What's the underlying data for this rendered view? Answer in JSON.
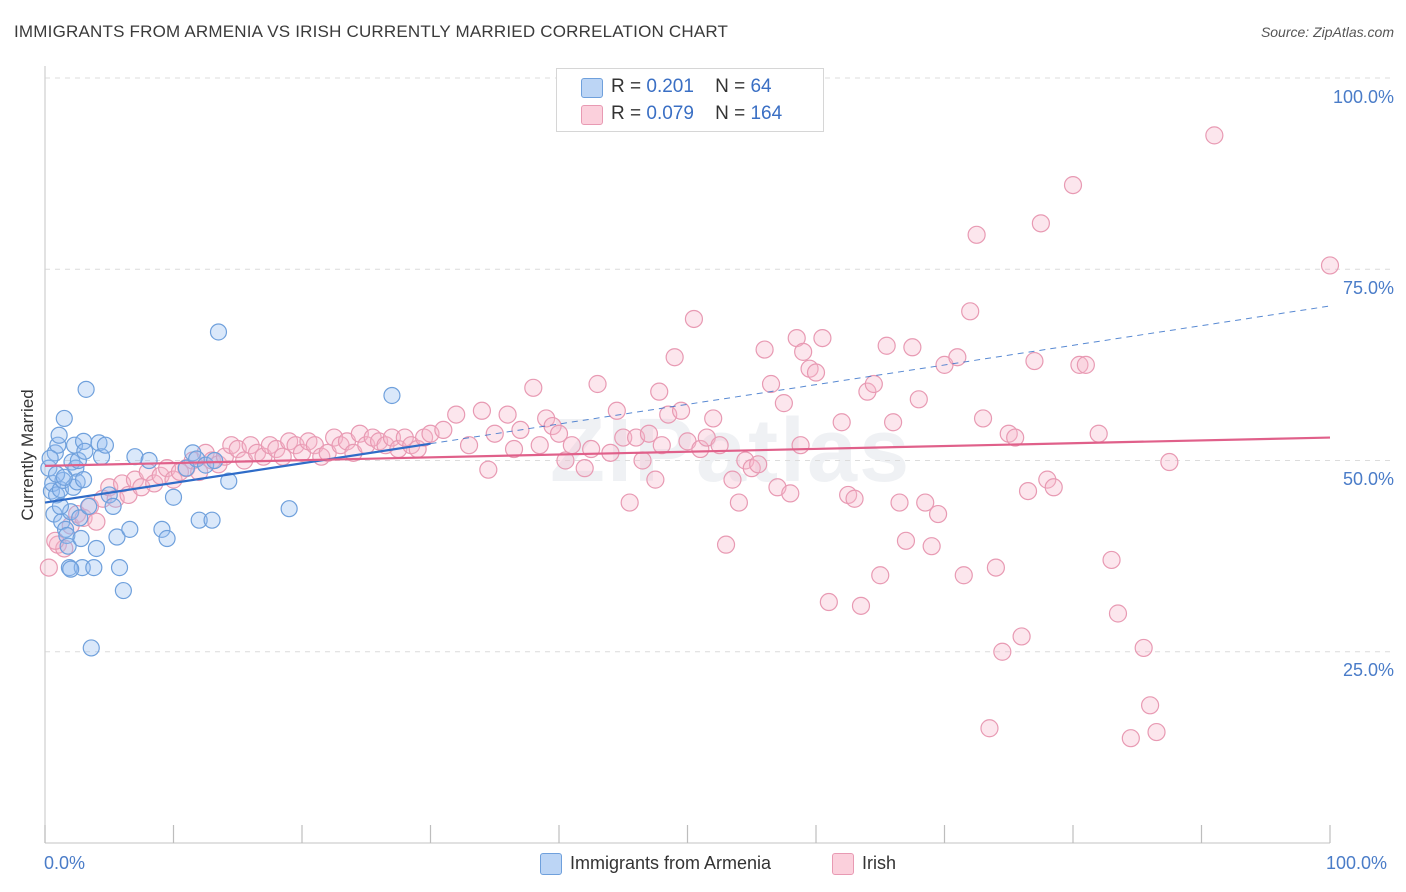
{
  "title": "IMMIGRANTS FROM ARMENIA VS IRISH CURRENTLY MARRIED CORRELATION CHART",
  "source": "Source: ZipAtlas.com",
  "watermark": "ZIPatlas",
  "legend": {
    "rows": [
      {
        "r_label": "R =",
        "r_value": "0.201",
        "n_label": "N =",
        "n_value": "64",
        "color": "#a9c8f0"
      },
      {
        "r_label": "R =",
        "r_value": "0.079",
        "n_label": "N =",
        "n_value": "164",
        "color": "#f6b8cb"
      }
    ]
  },
  "bottom_legend": [
    {
      "label": "Immigrants from Armenia",
      "color": "#a9c8f0"
    },
    {
      "label": "Irish",
      "color": "#f6b8cb"
    }
  ],
  "colors": {
    "blue_stroke": "#6fa0dc",
    "blue_fill": "rgba(150,190,240,0.35)",
    "blue_line": "#2f6cc8",
    "pink_stroke": "#e89ab3",
    "pink_fill": "rgba(246,184,203,0.35)",
    "pink_line": "#e0608a",
    "grid": "#dcdcdc",
    "tick_label": "#4a7cc8"
  },
  "chart_data": {
    "type": "scatter",
    "title": "IMMIGRANTS FROM ARMENIA VS IRISH CURRENTLY MARRIED CORRELATION CHART",
    "xlabel": "",
    "ylabel": "Currently Married",
    "xlim": [
      0,
      100
    ],
    "ylim": [
      0,
      100
    ],
    "x_tick_labels": [
      "0.0%",
      "100.0%"
    ],
    "y_tick_labels": [
      "100.0%",
      "75.0%",
      "50.0%",
      "25.0%"
    ],
    "y_ticks": [
      100,
      75,
      50,
      25
    ],
    "grid": true,
    "legend_position": "top-center",
    "series": [
      {
        "name": "Immigrants from Armenia",
        "r": 0.201,
        "n": 64,
        "trend": {
          "x0": 0,
          "y0": 44.5,
          "x1": 30,
          "y1": 52.2,
          "dash_x1": 100,
          "dash_y1": 70.2
        },
        "points": [
          [
            0.3,
            49
          ],
          [
            0.5,
            46
          ],
          [
            0.6,
            47
          ],
          [
            0.7,
            43
          ],
          [
            0.8,
            51
          ],
          [
            0.9,
            45.5
          ],
          [
            1.0,
            52
          ],
          [
            1.1,
            53.3
          ],
          [
            1.2,
            46.2
          ],
          [
            1.3,
            42
          ],
          [
            1.4,
            47.4
          ],
          [
            1.5,
            55.5
          ],
          [
            1.6,
            41
          ],
          [
            1.7,
            40.2
          ],
          [
            1.8,
            38.8
          ],
          [
            1.9,
            36
          ],
          [
            2.0,
            43.3
          ],
          [
            2.1,
            49.8
          ],
          [
            2.2,
            46.5
          ],
          [
            2.3,
            52
          ],
          [
            2.4,
            49
          ],
          [
            2.5,
            47.2
          ],
          [
            2.6,
            50
          ],
          [
            2.7,
            42.5
          ],
          [
            2.8,
            39.8
          ],
          [
            2.9,
            36
          ],
          [
            3.0,
            52.5
          ],
          [
            3.1,
            51.2
          ],
          [
            3.2,
            59.3
          ],
          [
            3.4,
            44
          ],
          [
            3.6,
            25.5
          ],
          [
            3.8,
            36
          ],
          [
            4.0,
            38.5
          ],
          [
            4.2,
            52.3
          ],
          [
            4.4,
            50.5
          ],
          [
            4.7,
            52
          ],
          [
            5.0,
            45.5
          ],
          [
            5.3,
            44
          ],
          [
            5.6,
            40
          ],
          [
            5.8,
            36
          ],
          [
            6.1,
            33
          ],
          [
            6.6,
            41
          ],
          [
            7.0,
            50.5
          ],
          [
            8.1,
            50
          ],
          [
            9.1,
            41
          ],
          [
            9.5,
            39.8
          ],
          [
            10,
            45.2
          ],
          [
            11,
            49
          ],
          [
            11.5,
            51
          ],
          [
            11.8,
            50.2
          ],
          [
            12,
            42.2
          ],
          [
            12.5,
            49.4
          ],
          [
            13,
            42.2
          ],
          [
            13.2,
            50
          ],
          [
            13.5,
            66.8
          ],
          [
            14.3,
            47.3
          ],
          [
            19,
            43.7
          ],
          [
            27,
            58.5
          ],
          [
            0.4,
            50.3
          ],
          [
            0.9,
            48.2
          ],
          [
            1.2,
            44
          ],
          [
            2.0,
            35.8
          ],
          [
            1.5,
            47.8
          ],
          [
            3.0,
            47.5
          ]
        ]
      },
      {
        "name": "Irish",
        "r": 0.079,
        "n": 164,
        "trend": {
          "x0": 0,
          "y0": 49.3,
          "x1": 100,
          "y1": 53.0
        },
        "points": [
          [
            0.3,
            36
          ],
          [
            1,
            39
          ],
          [
            1.5,
            38.5
          ],
          [
            2,
            41.5
          ],
          [
            2.5,
            43
          ],
          [
            3,
            42.5
          ],
          [
            3.5,
            44
          ],
          [
            4,
            42
          ],
          [
            4.5,
            45
          ],
          [
            5,
            46.5
          ],
          [
            5.5,
            45
          ],
          [
            6,
            47
          ],
          [
            6.5,
            45.5
          ],
          [
            7,
            47.5
          ],
          [
            7.5,
            46.5
          ],
          [
            8,
            48.5
          ],
          [
            8.5,
            47
          ],
          [
            9,
            48
          ],
          [
            9.5,
            49
          ],
          [
            10,
            47.5
          ],
          [
            10.5,
            48.5
          ],
          [
            11,
            49
          ],
          [
            11.5,
            50
          ],
          [
            12,
            48.5
          ],
          [
            12.5,
            51
          ],
          [
            13,
            50
          ],
          [
            13.5,
            49.5
          ],
          [
            14,
            50.5
          ],
          [
            14.5,
            52
          ],
          [
            15,
            51.5
          ],
          [
            15.5,
            50
          ],
          [
            16,
            52
          ],
          [
            16.5,
            51
          ],
          [
            17,
            50.5
          ],
          [
            17.5,
            52
          ],
          [
            18,
            51.5
          ],
          [
            18.5,
            50.5
          ],
          [
            19,
            52.5
          ],
          [
            19.5,
            52
          ],
          [
            20,
            51
          ],
          [
            20.5,
            52.5
          ],
          [
            21,
            52
          ],
          [
            21.5,
            50.5
          ],
          [
            22,
            51
          ],
          [
            22.5,
            53
          ],
          [
            23,
            52
          ],
          [
            23.5,
            52.5
          ],
          [
            24,
            51
          ],
          [
            24.5,
            53.5
          ],
          [
            25,
            52
          ],
          [
            25.5,
            53
          ],
          [
            26,
            52.5
          ],
          [
            26.5,
            52
          ],
          [
            27,
            53
          ],
          [
            27.5,
            51.5
          ],
          [
            28,
            53
          ],
          [
            28.5,
            52
          ],
          [
            29,
            51.5
          ],
          [
            29.5,
            53
          ],
          [
            30,
            53.5
          ],
          [
            31,
            54
          ],
          [
            32,
            56
          ],
          [
            33,
            52
          ],
          [
            34,
            56.5
          ],
          [
            34.5,
            48.8
          ],
          [
            35,
            53.5
          ],
          [
            36,
            56
          ],
          [
            36.5,
            51.5
          ],
          [
            37,
            54
          ],
          [
            38,
            59.5
          ],
          [
            38.5,
            52
          ],
          [
            39,
            55.5
          ],
          [
            39.5,
            54.5
          ],
          [
            40,
            53.5
          ],
          [
            40.5,
            50
          ],
          [
            41,
            52
          ],
          [
            42,
            49
          ],
          [
            42.5,
            51.5
          ],
          [
            43,
            60
          ],
          [
            44,
            51
          ],
          [
            44.5,
            56.5
          ],
          [
            45,
            53
          ],
          [
            45.5,
            44.5
          ],
          [
            46,
            53
          ],
          [
            46.5,
            50
          ],
          [
            47,
            53.5
          ],
          [
            47.5,
            47.5
          ],
          [
            47.8,
            59
          ],
          [
            48,
            52
          ],
          [
            48.5,
            56
          ],
          [
            49,
            63.5
          ],
          [
            49.5,
            56.5
          ],
          [
            50,
            52.5
          ],
          [
            50.5,
            68.5
          ],
          [
            51,
            51.5
          ],
          [
            51.5,
            53
          ],
          [
            52,
            55.5
          ],
          [
            52.5,
            52
          ],
          [
            53,
            39
          ],
          [
            53.5,
            47.5
          ],
          [
            54,
            44.5
          ],
          [
            54.5,
            50
          ],
          [
            55,
            49
          ],
          [
            55.5,
            49.5
          ],
          [
            56,
            64.5
          ],
          [
            56.5,
            60
          ],
          [
            57,
            46.5
          ],
          [
            57.5,
            57.5
          ],
          [
            58,
            45.7
          ],
          [
            58.5,
            66
          ],
          [
            58.8,
            52
          ],
          [
            59,
            64.2
          ],
          [
            59.5,
            62
          ],
          [
            60,
            61.5
          ],
          [
            60.5,
            66
          ],
          [
            61,
            31.5
          ],
          [
            62,
            55
          ],
          [
            62.5,
            45.5
          ],
          [
            63,
            45
          ],
          [
            63.5,
            31
          ],
          [
            64,
            59
          ],
          [
            64.5,
            60
          ],
          [
            65,
            35
          ],
          [
            65.5,
            65
          ],
          [
            66,
            55
          ],
          [
            66.5,
            44.5
          ],
          [
            67,
            39.5
          ],
          [
            67.5,
            64.8
          ],
          [
            68,
            58
          ],
          [
            68.5,
            44.5
          ],
          [
            69,
            38.8
          ],
          [
            69.5,
            43
          ],
          [
            70,
            62.5
          ],
          [
            71,
            63.5
          ],
          [
            71.5,
            35
          ],
          [
            72,
            69.5
          ],
          [
            72.5,
            79.5
          ],
          [
            73,
            55.5
          ],
          [
            73.5,
            15
          ],
          [
            74,
            36
          ],
          [
            74.5,
            25
          ],
          [
            75,
            53.5
          ],
          [
            75.5,
            53
          ],
          [
            76,
            27
          ],
          [
            76.5,
            46
          ],
          [
            77,
            63
          ],
          [
            77.5,
            81
          ],
          [
            78,
            47.5
          ],
          [
            78.5,
            46.5
          ],
          [
            80,
            86
          ],
          [
            80.5,
            62.5
          ],
          [
            81,
            62.5
          ],
          [
            82,
            53.5
          ],
          [
            83,
            37
          ],
          [
            83.5,
            30
          ],
          [
            84.5,
            13.7
          ],
          [
            85.5,
            25.5
          ],
          [
            86,
            18
          ],
          [
            86.5,
            14.5
          ],
          [
            87.5,
            49.8
          ],
          [
            91,
            92.5
          ],
          [
            100,
            75.5
          ],
          [
            0.8,
            39.5
          ]
        ]
      }
    ]
  }
}
